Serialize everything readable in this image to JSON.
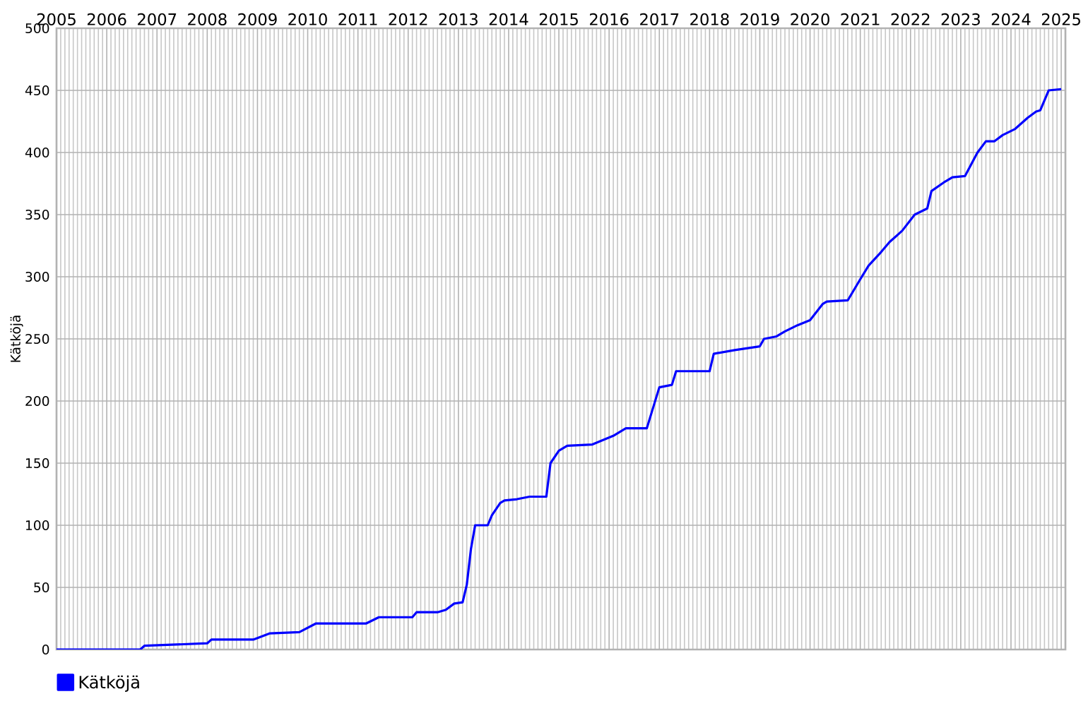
{
  "chart_data": {
    "type": "line",
    "ylabel": "Kätköjä",
    "xlim": [
      "2005-01",
      "2025-02"
    ],
    "xticks": [
      "2005",
      "2006",
      "2007",
      "2008",
      "2009",
      "2010",
      "2011",
      "2012",
      "2013",
      "2014",
      "2015",
      "2016",
      "2017",
      "2018",
      "2019",
      "2020",
      "2021",
      "2022",
      "2023",
      "2024",
      "2025"
    ],
    "ylim": [
      0,
      500
    ],
    "yticks": [
      0,
      50,
      100,
      150,
      200,
      250,
      300,
      350,
      400,
      450,
      500
    ],
    "grid": true,
    "legend": "bottom left",
    "x": [
      "2005-01",
      "2006-09",
      "2006-10",
      "2008-01",
      "2008-02",
      "2008-12",
      "2009-04",
      "2009-11",
      "2010-03",
      "2011-03",
      "2011-06",
      "2012-02",
      "2012-03",
      "2012-08",
      "2012-10",
      "2012-12",
      "2013-02",
      "2013-03",
      "2013-04",
      "2013-05",
      "2013-08",
      "2013-09",
      "2013-11",
      "2013-12",
      "2014-03",
      "2014-06",
      "2014-10",
      "2014-11",
      "2015-01",
      "2015-03",
      "2015-09",
      "2016-02",
      "2016-05",
      "2016-10",
      "2016-11",
      "2017-01",
      "2017-04",
      "2017-05",
      "2018-01",
      "2018-02",
      "2018-07",
      "2019-01",
      "2019-02",
      "2019-05",
      "2019-07",
      "2019-10",
      "2020-01",
      "2020-04",
      "2020-05",
      "2020-10",
      "2021-01",
      "2021-03",
      "2021-06",
      "2021-08",
      "2021-10",
      "2021-11",
      "2022-02",
      "2022-05",
      "2022-06",
      "2022-09",
      "2022-11",
      "2023-02",
      "2023-05",
      "2023-07",
      "2023-09",
      "2023-11",
      "2024-02",
      "2024-05",
      "2024-07",
      "2024-08",
      "2024-10",
      "2025-01"
    ],
    "series": [
      {
        "name": "Kätköjä",
        "color": "#0000ff",
        "values": [
          0,
          0,
          3,
          5,
          8,
          8,
          13,
          14,
          21,
          21,
          26,
          26,
          30,
          30,
          32,
          37,
          38,
          52,
          81,
          100,
          100,
          108,
          118,
          120,
          121,
          123,
          123,
          150,
          160,
          164,
          165,
          172,
          178,
          178,
          189,
          211,
          213,
          224,
          224,
          238,
          241,
          244,
          250,
          252,
          256,
          261,
          265,
          278,
          280,
          281,
          298,
          309,
          320,
          328,
          334,
          337,
          350,
          355,
          369,
          376,
          380,
          381,
          400,
          409,
          409,
          414,
          419,
          428,
          433,
          434,
          450,
          451
        ]
      }
    ]
  }
}
